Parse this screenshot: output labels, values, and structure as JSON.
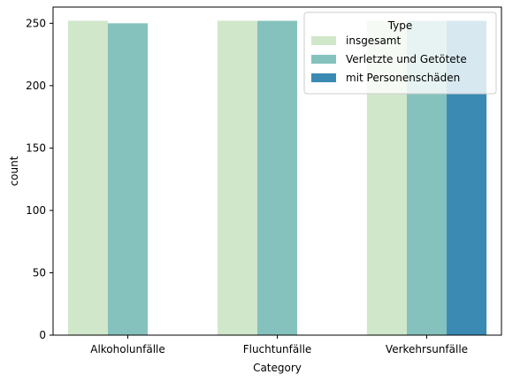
{
  "chart_data": {
    "type": "bar",
    "categories": [
      "Alkoholunfälle",
      "Fluchtunfälle",
      "Verkehrsunfälle"
    ],
    "series": [
      {
        "name": "insgesamt",
        "values": [
          252,
          252,
          252
        ],
        "color": "#d0e7ca"
      },
      {
        "name": "Verletzte und Getötete",
        "values": [
          250,
          252,
          252
        ],
        "color": "#85c2bd"
      },
      {
        "name": "mit Personenschäden",
        "values": [
          null,
          null,
          252
        ],
        "color": "#3a8ab4"
      }
    ],
    "xlabel": "Category",
    "ylabel": "count",
    "ylim": [
      0,
      263
    ],
    "yticks": [
      0,
      50,
      100,
      150,
      200,
      250
    ],
    "legend": {
      "title": "Type",
      "placement": "top-right"
    },
    "grid": false
  }
}
